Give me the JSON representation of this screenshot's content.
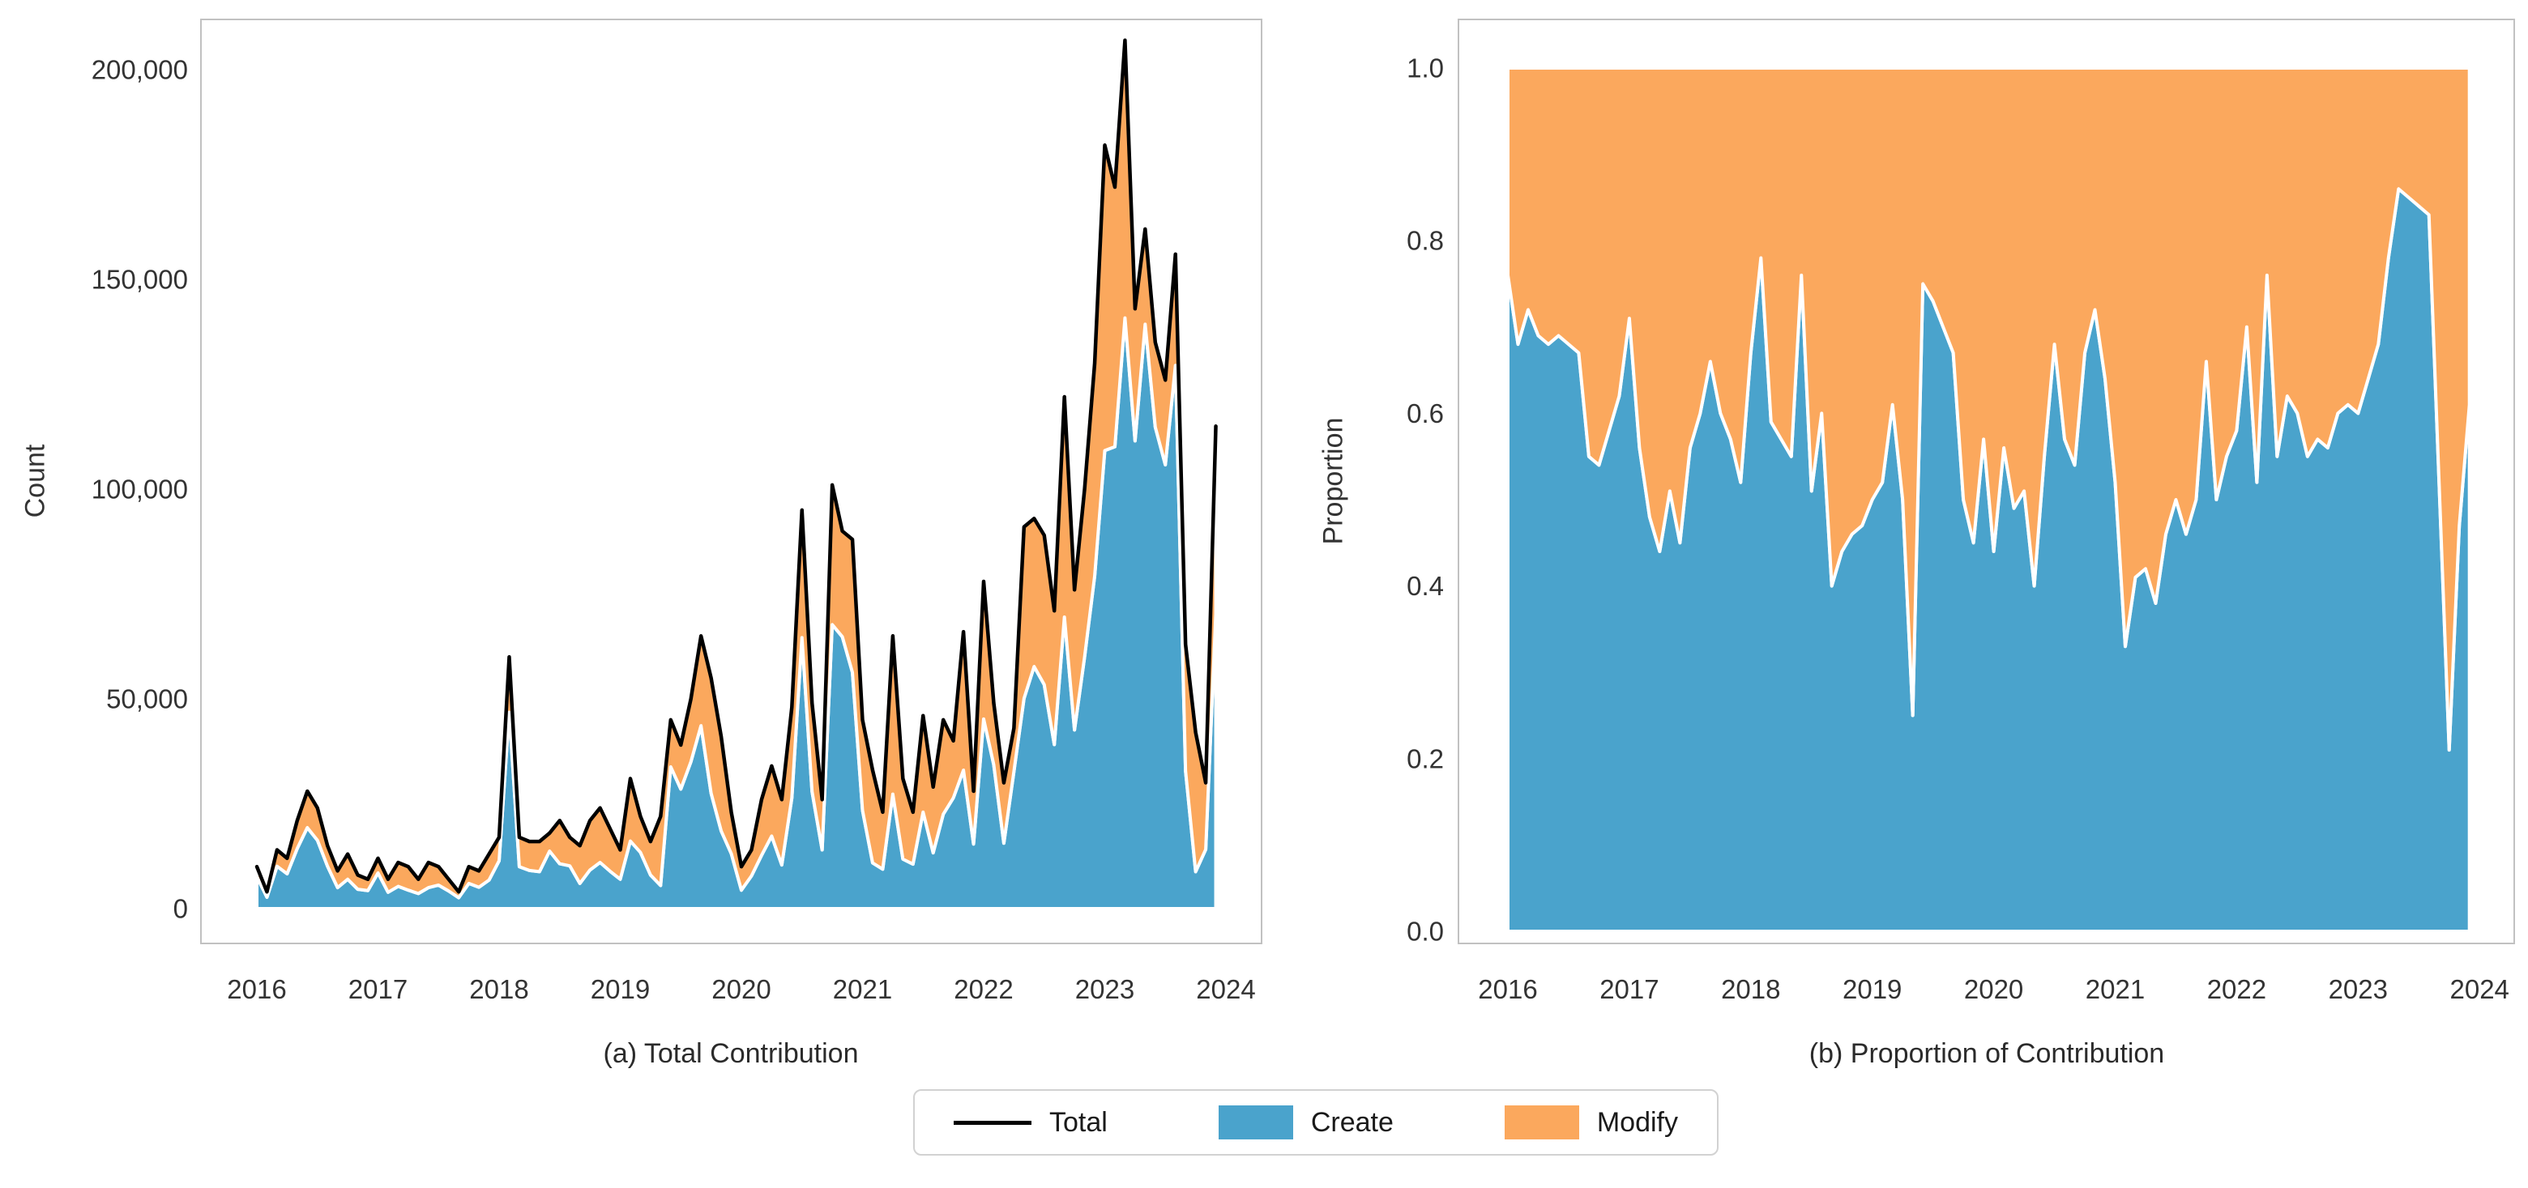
{
  "figure": {
    "background": "#ffffff"
  },
  "colors": {
    "create": "#4AA3CC",
    "modify": "#FBA85D",
    "total_line": "#000000",
    "frame": "#c1c1c1",
    "tick_text": "#333333"
  },
  "legend": {
    "items": [
      {
        "label": "Total",
        "swatch": "line",
        "color": "#000000"
      },
      {
        "label": "Create",
        "swatch": "patch",
        "color": "#4AA3CC"
      },
      {
        "label": "Modify",
        "swatch": "patch",
        "color": "#FBA85D"
      }
    ]
  },
  "chart_data": [
    {
      "type": "area",
      "stacked": true,
      "caption": "(a) Total Contribution",
      "ylabel": "Count",
      "xlabel": "",
      "grid": false,
      "legend_position": "bottom-shared",
      "x_months": {
        "start": "2016-01",
        "end": "2023-12",
        "count": 96
      },
      "x_tick_labels": [
        "2016",
        "2017",
        "2018",
        "2019",
        "2020",
        "2021",
        "2022",
        "2023",
        "2024"
      ],
      "y_tick_values": [
        0,
        50000,
        100000,
        150000,
        200000
      ],
      "y_tick_labels": [
        "0",
        "50,000",
        "100,000",
        "150,000",
        "200,000"
      ],
      "ylim": [
        0,
        220000
      ],
      "series": [
        {
          "name": "Create",
          "color": "#4AA3CC",
          "values": [
            7600,
            2700,
            10100,
            8300,
            14300,
            19300,
            16300,
            10100,
            5000,
            7000,
            4600,
            4300,
            8500,
            3900,
            5300,
            4400,
            3600,
            5000,
            5600,
            4200,
            2600,
            6000,
            5100,
            6800,
            11400,
            46800,
            10000,
            9100,
            8800,
            13700,
            10700,
            10200,
            6000,
            9200,
            11000,
            8900,
            7000,
            16100,
            13400,
            8000,
            5500,
            33800,
            28500,
            35000,
            43600,
            27500,
            18500,
            13100,
            4400,
            7800,
            12700,
            17300,
            10400,
            26400,
            64600,
            27900,
            14000,
            67700,
            64800,
            56300,
            23400,
            10900,
            9400,
            27300,
            11800,
            10600,
            23000,
            13300,
            22500,
            26400,
            33000,
            15400,
            45200,
            34300,
            15600,
            32700,
            50100,
            57700,
            53400,
            39100,
            69500,
            42600,
            60000,
            79300,
            109200,
            110100,
            140800,
            111500,
            139300,
            114800,
            105800,
            129500,
            32800,
            8800,
            14100,
            70200
          ]
        },
        {
          "name": "Modify",
          "color": "#FBA85D",
          "values": [
            2400,
            1300,
            3900,
            3700,
            6700,
            8700,
            7700,
            4900,
            4000,
            6000,
            3400,
            2700,
            3500,
            3100,
            5700,
            5600,
            3400,
            6100,
            4400,
            2800,
            1400,
            4000,
            3900,
            6200,
            5600,
            13200,
            7000,
            6900,
            7200,
            4300,
            10300,
            6800,
            9000,
            11800,
            13000,
            10100,
            7000,
            14900,
            8600,
            8000,
            16500,
            11200,
            10500,
            15000,
            21400,
            27500,
            22500,
            9900,
            5600,
            6200,
            13300,
            16700,
            15600,
            21600,
            30400,
            21100,
            12000,
            33300,
            25200,
            31700,
            21600,
            22100,
            13600,
            37700,
            19200,
            12400,
            23000,
            15700,
            22500,
            13600,
            33000,
            12600,
            32800,
            14700,
            14400,
            10300,
            40900,
            35300,
            35600,
            31900,
            52500,
            33400,
            40000,
            50700,
            72800,
            61900,
            66200,
            31500,
            22700,
            20200,
            20200,
            26500,
            30200,
            33200,
            15900,
            44800
          ]
        }
      ],
      "total_series": {
        "name": "Total",
        "color": "#000000",
        "values": [
          10000,
          4000,
          14000,
          12000,
          21000,
          28000,
          24000,
          15000,
          9000,
          13000,
          8000,
          7000,
          12000,
          7000,
          11000,
          10000,
          7000,
          11000,
          10000,
          7000,
          4000,
          10000,
          9000,
          13000,
          17000,
          60000,
          17000,
          16000,
          16000,
          18000,
          21000,
          17000,
          15000,
          21000,
          24000,
          19000,
          14000,
          31000,
          22000,
          16000,
          22000,
          45000,
          39000,
          50000,
          65000,
          55000,
          41000,
          23000,
          10000,
          14000,
          26000,
          34000,
          26000,
          48000,
          95000,
          49000,
          26000,
          101000,
          90000,
          88000,
          45000,
          33000,
          23000,
          65000,
          31000,
          23000,
          46000,
          29000,
          45000,
          40000,
          66000,
          28000,
          78000,
          49000,
          30000,
          43000,
          91000,
          93000,
          89000,
          71000,
          122000,
          76000,
          100000,
          130000,
          182000,
          172000,
          207000,
          143000,
          162000,
          135000,
          126000,
          156000,
          63000,
          42000,
          30000,
          115000
        ]
      }
    },
    {
      "type": "area",
      "stacked": true,
      "normalized": true,
      "caption": "(b) Proportion of Contribution",
      "ylabel": "Proportion",
      "xlabel": "",
      "grid": false,
      "legend_position": "bottom-shared",
      "x_months": {
        "start": "2016-01",
        "end": "2023-12",
        "count": 96
      },
      "x_tick_labels": [
        "2016",
        "2017",
        "2018",
        "2019",
        "2020",
        "2021",
        "2022",
        "2023",
        "2024"
      ],
      "y_tick_values": [
        0,
        0.2,
        0.4,
        0.6,
        0.8,
        1.0
      ],
      "y_tick_labels": [
        "0.0",
        "0.2",
        "0.4",
        "0.6",
        "0.8",
        "1.0"
      ],
      "ylim": [
        0,
        1
      ],
      "series": [
        {
          "name": "Create",
          "color": "#4AA3CC",
          "values": [
            0.76,
            0.68,
            0.72,
            0.69,
            0.68,
            0.69,
            0.68,
            0.67,
            0.55,
            0.54,
            0.58,
            0.62,
            0.71,
            0.56,
            0.48,
            0.44,
            0.51,
            0.45,
            0.56,
            0.6,
            0.66,
            0.6,
            0.57,
            0.52,
            0.67,
            0.78,
            0.59,
            0.57,
            0.55,
            0.76,
            0.51,
            0.6,
            0.4,
            0.44,
            0.46,
            0.47,
            0.5,
            0.52,
            0.61,
            0.5,
            0.25,
            0.75,
            0.73,
            0.7,
            0.67,
            0.5,
            0.45,
            0.57,
            0.44,
            0.56,
            0.49,
            0.51,
            0.4,
            0.55,
            0.68,
            0.57,
            0.54,
            0.67,
            0.72,
            0.64,
            0.52,
            0.33,
            0.41,
            0.42,
            0.38,
            0.46,
            0.5,
            0.46,
            0.5,
            0.66,
            0.5,
            0.55,
            0.58,
            0.7,
            0.52,
            0.76,
            0.55,
            0.62,
            0.6,
            0.55,
            0.57,
            0.56,
            0.6,
            0.61,
            0.6,
            0.64,
            0.68,
            0.78,
            0.86,
            0.85,
            0.84,
            0.83,
            0.52,
            0.21,
            0.47,
            0.61
          ]
        },
        {
          "name": "Modify",
          "color": "#FBA85D",
          "values": [
            0.24,
            0.32,
            0.28,
            0.31,
            0.32,
            0.31,
            0.32,
            0.33,
            0.45,
            0.46,
            0.42,
            0.38,
            0.29,
            0.44,
            0.52,
            0.56,
            0.49,
            0.55,
            0.44,
            0.4,
            0.34,
            0.4,
            0.43,
            0.48,
            0.33,
            0.22,
            0.41,
            0.43,
            0.45,
            0.24,
            0.49,
            0.4,
            0.6,
            0.56,
            0.54,
            0.53,
            0.5,
            0.48,
            0.39,
            0.5,
            0.75,
            0.25,
            0.27,
            0.3,
            0.33,
            0.5,
            0.55,
            0.43,
            0.56,
            0.44,
            0.51,
            0.49,
            0.6,
            0.45,
            0.32,
            0.43,
            0.46,
            0.33,
            0.28,
            0.36,
            0.48,
            0.67,
            0.59,
            0.58,
            0.62,
            0.54,
            0.5,
            0.54,
            0.5,
            0.34,
            0.5,
            0.45,
            0.42,
            0.3,
            0.48,
            0.24,
            0.45,
            0.38,
            0.4,
            0.45,
            0.43,
            0.44,
            0.4,
            0.39,
            0.4,
            0.36,
            0.32,
            0.22,
            0.14,
            0.15,
            0.16,
            0.17,
            0.48,
            0.79,
            0.53,
            0.39
          ]
        }
      ]
    }
  ]
}
